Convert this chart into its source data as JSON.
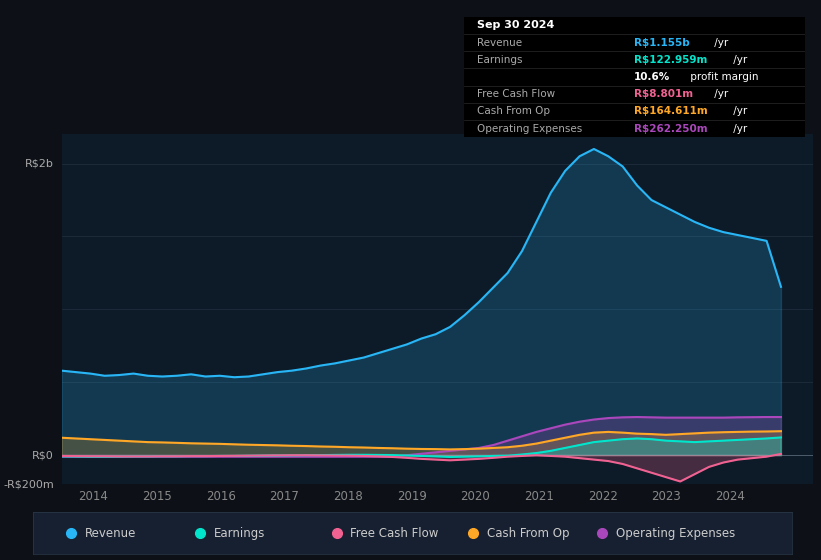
{
  "bg_color": "#0d1117",
  "plot_bg_color": "#0d1a27",
  "legend": [
    {
      "label": "Revenue",
      "color": "#29b6f6"
    },
    {
      "label": "Earnings",
      "color": "#00e5cc"
    },
    {
      "label": "Free Cash Flow",
      "color": "#f06292"
    },
    {
      "label": "Cash From Op",
      "color": "#ffa726"
    },
    {
      "label": "Operating Expenses",
      "color": "#ab47bc"
    }
  ],
  "ylim": [
    -200,
    2200
  ],
  "xlim_start": 2013.5,
  "xlim_end": 2025.3,
  "x_ticks": [
    2014,
    2015,
    2016,
    2017,
    2018,
    2019,
    2020,
    2021,
    2022,
    2023,
    2024
  ],
  "revenue_m": [
    580,
    570,
    560,
    545,
    550,
    560,
    545,
    540,
    545,
    555,
    540,
    545,
    535,
    540,
    555,
    570,
    580,
    595,
    615,
    630,
    650,
    670,
    700,
    730,
    760,
    800,
    830,
    880,
    960,
    1050,
    1150,
    1250,
    1400,
    1600,
    1800,
    1950,
    2050,
    2100,
    2050,
    1980,
    1850,
    1750,
    1700,
    1650,
    1600,
    1560,
    1530,
    1510,
    1490,
    1470,
    1155
  ],
  "earnings_m": [
    -8,
    -9,
    -10,
    -10,
    -9,
    -8,
    -8,
    -7,
    -7,
    -6,
    -6,
    -5,
    -5,
    -4,
    -3,
    -2,
    -1,
    0,
    1,
    2,
    3,
    3,
    2,
    1,
    -2,
    -5,
    -8,
    -12,
    -10,
    -8,
    -5,
    -3,
    5,
    15,
    30,
    50,
    70,
    90,
    100,
    110,
    115,
    110,
    100,
    95,
    90,
    95,
    100,
    105,
    110,
    115,
    122
  ],
  "fcf_m": [
    -5,
    -6,
    -7,
    -7,
    -8,
    -8,
    -8,
    -7,
    -7,
    -6,
    -6,
    -5,
    -4,
    -3,
    -2,
    -1,
    0,
    0,
    -1,
    -2,
    -3,
    -5,
    -8,
    -12,
    -18,
    -25,
    -30,
    -35,
    -30,
    -25,
    -18,
    -10,
    -5,
    0,
    -5,
    -10,
    -20,
    -30,
    -40,
    -60,
    -90,
    -120,
    -150,
    -180,
    -130,
    -80,
    -50,
    -30,
    -20,
    -10,
    9
  ],
  "cfo_m": [
    120,
    115,
    110,
    105,
    100,
    95,
    90,
    88,
    85,
    82,
    80,
    78,
    75,
    72,
    70,
    68,
    65,
    63,
    60,
    58,
    55,
    53,
    50,
    48,
    45,
    43,
    42,
    40,
    42,
    45,
    50,
    55,
    65,
    80,
    100,
    120,
    140,
    155,
    160,
    155,
    148,
    145,
    140,
    145,
    150,
    155,
    158,
    160,
    162,
    163,
    165
  ],
  "opex_m": [
    -10,
    -10,
    -10,
    -10,
    -10,
    -10,
    -10,
    -10,
    -10,
    -10,
    -10,
    -10,
    -10,
    -10,
    -10,
    -10,
    -10,
    -10,
    -10,
    -10,
    -10,
    -10,
    -10,
    -10,
    0,
    10,
    20,
    30,
    40,
    50,
    70,
    100,
    130,
    160,
    185,
    210,
    230,
    245,
    255,
    260,
    262,
    260,
    258,
    258,
    258,
    258,
    258,
    260,
    261,
    262,
    262
  ]
}
